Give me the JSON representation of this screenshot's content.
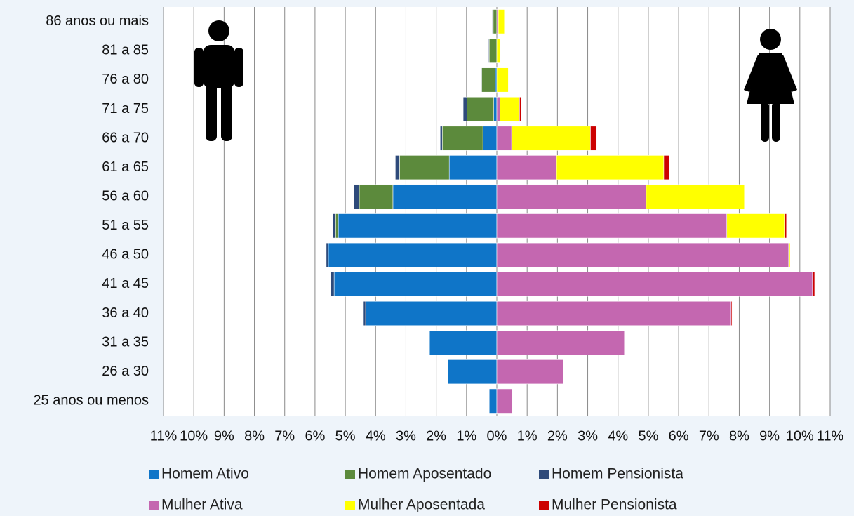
{
  "chart_data": {
    "type": "bar",
    "orientation": "horizontal",
    "stacked": true,
    "grid": true,
    "categories": [
      "86 anos ou mais",
      "81 a 85",
      "76 a 80",
      "71 a 75",
      "66 a 70",
      "61 a 65",
      "56 a 60",
      "51 a 55",
      "46 a 50",
      "41 a 45",
      "36 a 40",
      "31 a 35",
      "26 a 30",
      "25 anos ou menos"
    ],
    "series": [
      {
        "name": "Homem Ativo",
        "color": "#0f75c8",
        "values": [
          0,
          0,
          -0.05,
          -0.1,
          -0.46,
          -1.57,
          -3.43,
          -5.23,
          -5.56,
          -5.37,
          -4.33,
          -2.22,
          -1.62,
          -0.25
        ]
      },
      {
        "name": "Homem Aposentado",
        "color": "#5c8a3c",
        "values": [
          -0.12,
          -0.25,
          -0.45,
          -0.88,
          -1.34,
          -1.64,
          -1.11,
          -0.09,
          0,
          0,
          0,
          0,
          0,
          0
        ]
      },
      {
        "name": "Homem Pensionista",
        "color": "#2e4a7a",
        "values": [
          -0.03,
          -0.02,
          -0.03,
          -0.13,
          -0.07,
          -0.14,
          -0.18,
          -0.09,
          -0.07,
          -0.12,
          -0.07,
          0,
          0,
          0
        ]
      },
      {
        "name": "Mulher Ativa",
        "color": "#c467b0",
        "values": [
          0.05,
          0,
          0,
          0.1,
          0.49,
          1.97,
          4.93,
          7.59,
          9.63,
          10.42,
          7.73,
          4.21,
          2.2,
          0.51
        ]
      },
      {
        "name": "Mulher Aposentada",
        "color": "#ffff00",
        "values": [
          0.2,
          0.12,
          0.38,
          0.65,
          2.6,
          3.54,
          3.24,
          1.9,
          0.05,
          0,
          0,
          0,
          0,
          0
        ]
      },
      {
        "name": "Mulher Pensionista",
        "color": "#cc0000",
        "values": [
          0,
          0,
          0,
          0.05,
          0.2,
          0.18,
          0,
          0.07,
          0,
          0.07,
          0.03,
          0,
          0,
          0
        ]
      }
    ],
    "xlim": [
      -11,
      11
    ],
    "xticks": [
      {
        "value": -11,
        "label": "11%"
      },
      {
        "value": -10,
        "label": "10%"
      },
      {
        "value": -9,
        "label": "9%"
      },
      {
        "value": -8,
        "label": "8%"
      },
      {
        "value": -7,
        "label": "7%"
      },
      {
        "value": -6,
        "label": "6%"
      },
      {
        "value": -5,
        "label": "5%"
      },
      {
        "value": -4,
        "label": "4%"
      },
      {
        "value": -3,
        "label": "3%"
      },
      {
        "value": -2,
        "label": "2%"
      },
      {
        "value": -1,
        "label": "1%"
      },
      {
        "value": 0,
        "label": "0%"
      },
      {
        "value": 1,
        "label": "1%"
      },
      {
        "value": 2,
        "label": "2%"
      },
      {
        "value": 3,
        "label": "3%"
      },
      {
        "value": 4,
        "label": "4%"
      },
      {
        "value": 5,
        "label": "5%"
      },
      {
        "value": 6,
        "label": "6%"
      },
      {
        "value": 7,
        "label": "7%"
      },
      {
        "value": 8,
        "label": "8%"
      },
      {
        "value": 9,
        "label": "9%"
      },
      {
        "value": 10,
        "label": "10%"
      },
      {
        "value": 11,
        "label": "11%"
      }
    ]
  }
}
